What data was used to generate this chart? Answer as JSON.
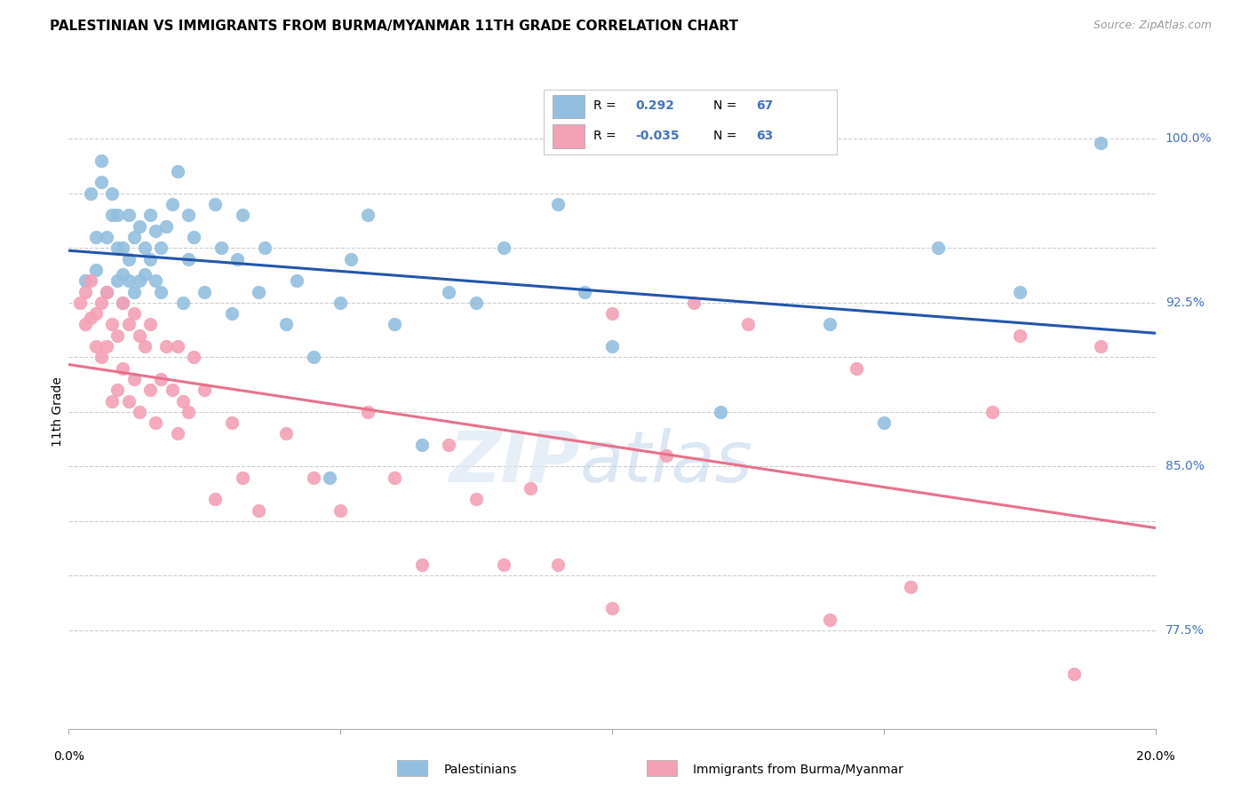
{
  "title": "PALESTINIAN VS IMMIGRANTS FROM BURMA/MYANMAR 11TH GRADE CORRELATION CHART",
  "source": "Source: ZipAtlas.com",
  "ylabel": "11th Grade",
  "xlim": [
    0.0,
    20.0
  ],
  "ylim": [
    73.0,
    102.0
  ],
  "r_blue": 0.292,
  "n_blue": 67,
  "r_pink": -0.035,
  "n_pink": 63,
  "legend_label_blue": "Palestinians",
  "legend_label_pink": "Immigrants from Burma/Myanmar",
  "blue_color": "#92bfdf",
  "pink_color": "#f4a0b5",
  "blue_line_color": "#2255aa",
  "pink_line_color": "#e8708a",
  "ytick_vals": [
    77.5,
    85.0,
    92.5,
    100.0
  ],
  "grid_vals": [
    77.5,
    80.0,
    82.5,
    85.0,
    87.5,
    90.0,
    92.5,
    95.0,
    97.5,
    100.0
  ],
  "blue_x": [
    0.3,
    0.4,
    0.5,
    0.5,
    0.6,
    0.6,
    0.7,
    0.7,
    0.8,
    0.8,
    0.9,
    0.9,
    0.9,
    1.0,
    1.0,
    1.0,
    1.1,
    1.1,
    1.1,
    1.2,
    1.2,
    1.3,
    1.3,
    1.4,
    1.4,
    1.5,
    1.5,
    1.6,
    1.6,
    1.7,
    1.7,
    1.8,
    1.9,
    2.0,
    2.1,
    2.2,
    2.2,
    2.3,
    2.5,
    2.7,
    2.8,
    3.0,
    3.1,
    3.2,
    3.5,
    3.6,
    4.0,
    4.2,
    4.5,
    4.8,
    5.0,
    5.2,
    5.5,
    6.0,
    6.5,
    7.0,
    7.5,
    8.0,
    9.0,
    9.5,
    10.0,
    12.0,
    14.0,
    15.0,
    16.0,
    17.5,
    19.0
  ],
  "blue_y": [
    93.5,
    97.5,
    94.0,
    95.5,
    98.0,
    99.0,
    93.0,
    95.5,
    96.5,
    97.5,
    93.5,
    95.0,
    96.5,
    92.5,
    93.8,
    95.0,
    93.5,
    94.5,
    96.5,
    93.0,
    95.5,
    93.5,
    96.0,
    93.8,
    95.0,
    94.5,
    96.5,
    93.5,
    95.8,
    93.0,
    95.0,
    96.0,
    97.0,
    98.5,
    92.5,
    94.5,
    96.5,
    95.5,
    93.0,
    97.0,
    95.0,
    92.0,
    94.5,
    96.5,
    93.0,
    95.0,
    91.5,
    93.5,
    90.0,
    84.5,
    92.5,
    94.5,
    96.5,
    91.5,
    86.0,
    93.0,
    92.5,
    95.0,
    97.0,
    93.0,
    90.5,
    87.5,
    91.5,
    87.0,
    95.0,
    93.0,
    99.8
  ],
  "pink_x": [
    0.2,
    0.3,
    0.3,
    0.4,
    0.4,
    0.5,
    0.5,
    0.6,
    0.6,
    0.7,
    0.7,
    0.8,
    0.8,
    0.9,
    0.9,
    1.0,
    1.0,
    1.1,
    1.1,
    1.2,
    1.2,
    1.3,
    1.3,
    1.4,
    1.5,
    1.5,
    1.6,
    1.7,
    1.8,
    1.9,
    2.0,
    2.0,
    2.1,
    2.2,
    2.3,
    2.5,
    2.7,
    3.0,
    3.2,
    3.5,
    4.0,
    4.5,
    5.0,
    5.5,
    6.0,
    6.5,
    7.0,
    7.5,
    8.0,
    8.5,
    9.0,
    10.0,
    11.0,
    12.5,
    14.0,
    15.5,
    17.0,
    10.0,
    11.5,
    14.5,
    17.5,
    19.0,
    18.5
  ],
  "pink_y": [
    92.5,
    91.5,
    93.0,
    91.8,
    93.5,
    90.5,
    92.0,
    90.0,
    92.5,
    90.5,
    93.0,
    88.0,
    91.5,
    88.5,
    91.0,
    89.5,
    92.5,
    88.0,
    91.5,
    89.0,
    92.0,
    87.5,
    91.0,
    90.5,
    88.5,
    91.5,
    87.0,
    89.0,
    90.5,
    88.5,
    86.5,
    90.5,
    88.0,
    87.5,
    90.0,
    88.5,
    83.5,
    87.0,
    84.5,
    83.0,
    86.5,
    84.5,
    83.0,
    87.5,
    84.5,
    80.5,
    86.0,
    83.5,
    80.5,
    84.0,
    80.5,
    78.5,
    85.5,
    91.5,
    78.0,
    79.5,
    87.5,
    92.0,
    92.5,
    89.5,
    91.0,
    90.5,
    75.5
  ]
}
